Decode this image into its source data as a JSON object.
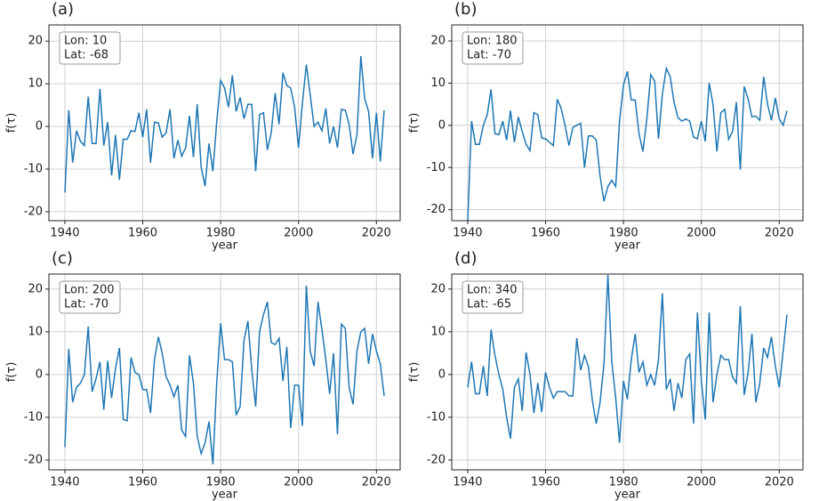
{
  "chart_data": [
    {
      "type": "line",
      "panel_label": "(a)",
      "annotation": [
        "Lon: 10",
        "Lat: -68"
      ],
      "xlabel": "year",
      "ylabel": "f(τ)",
      "x": [
        1940,
        1941,
        1942,
        1943,
        1944,
        1945,
        1946,
        1947,
        1948,
        1949,
        1950,
        1951,
        1952,
        1953,
        1954,
        1955,
        1956,
        1957,
        1958,
        1959,
        1960,
        1961,
        1962,
        1963,
        1964,
        1965,
        1966,
        1967,
        1968,
        1969,
        1970,
        1971,
        1972,
        1973,
        1974,
        1975,
        1976,
        1977,
        1978,
        1979,
        1980,
        1981,
        1982,
        1983,
        1984,
        1985,
        1986,
        1987,
        1988,
        1989,
        1990,
        1991,
        1992,
        1993,
        1994,
        1995,
        1996,
        1997,
        1998,
        1999,
        2000,
        2001,
        2002,
        2003,
        2004,
        2005,
        2006,
        2007,
        2008,
        2009,
        2010,
        2011,
        2012,
        2013,
        2014,
        2015,
        2016,
        2017,
        2018,
        2019,
        2020,
        2021,
        2022
      ],
      "series": [
        {
          "name": "f(τ)",
          "color": "#1f77b4",
          "values": [
            -15.5,
            3.8,
            -8.5,
            -1,
            -3.5,
            -4.5,
            7,
            -4,
            -4,
            8.8,
            -4.5,
            1,
            -11.5,
            -2,
            -12.5,
            -3,
            -3,
            -1,
            -1.2,
            3.2,
            -2.5,
            4,
            -8.5,
            1,
            0.8,
            -2.5,
            -1.5,
            4,
            -7.5,
            -3.2,
            -7,
            -5,
            2.5,
            -7.2,
            5.2,
            -9.5,
            -14,
            -4,
            -10.5,
            1,
            10.8,
            9,
            4.5,
            12,
            3.5,
            6.8,
            1.8,
            5.2,
            5.2,
            -10.5,
            2.8,
            3.2,
            -5.5,
            -1.5,
            7.8,
            0.5,
            12.6,
            9.6,
            9,
            4.5,
            -5,
            5.5,
            14.5,
            7.5,
            0,
            1,
            -1,
            4.2,
            -4,
            0,
            -5,
            4,
            3.8,
            0.5,
            -6.5,
            -2,
            16.5,
            6.5,
            3.5,
            -7.5,
            3.2,
            -8.2,
            3.8
          ]
        }
      ],
      "xlim": [
        1935.9,
        2026.1
      ],
      "xticks": [
        1940,
        1960,
        1980,
        2000,
        2020
      ],
      "ylim": [
        -22.1,
        23.8
      ],
      "yticks": [
        -20,
        -10,
        0,
        10,
        20
      ],
      "grid": true
    },
    {
      "type": "line",
      "panel_label": "(b)",
      "annotation": [
        "Lon: 180",
        "Lat: -70"
      ],
      "xlabel": "year",
      "ylabel": "f(τ)",
      "x": [
        1940,
        1941,
        1942,
        1943,
        1944,
        1945,
        1946,
        1947,
        1948,
        1949,
        1950,
        1951,
        1952,
        1953,
        1954,
        1955,
        1956,
        1957,
        1958,
        1959,
        1960,
        1961,
        1962,
        1963,
        1964,
        1965,
        1966,
        1967,
        1968,
        1969,
        1970,
        1971,
        1972,
        1973,
        1974,
        1975,
        1976,
        1977,
        1978,
        1979,
        1980,
        1981,
        1982,
        1983,
        1984,
        1985,
        1986,
        1987,
        1988,
        1989,
        1990,
        1991,
        1992,
        1993,
        1994,
        1995,
        1996,
        1997,
        1998,
        1999,
        2000,
        2001,
        2002,
        2003,
        2004,
        2005,
        2006,
        2007,
        2008,
        2009,
        2010,
        2011,
        2012,
        2013,
        2014,
        2015,
        2016,
        2017,
        2018,
        2019,
        2020,
        2021,
        2022
      ],
      "series": [
        {
          "name": "f(τ)",
          "color": "#1f77b4",
          "values": [
            -22.6,
            1,
            -4.5,
            -4.5,
            0,
            2.5,
            8.5,
            -2,
            -2.2,
            1,
            -3.5,
            3.5,
            -4,
            2,
            -1.5,
            -4.5,
            -6,
            3,
            2.5,
            -3,
            -3.2,
            -4,
            -4.8,
            6.2,
            4,
            0,
            -4.8,
            -0.5,
            0,
            0.5,
            -10,
            -2.5,
            -2.5,
            -3.5,
            -12,
            -18,
            -14.5,
            -13,
            -14.5,
            1,
            9.5,
            12.8,
            6,
            6,
            -2,
            -6.2,
            1.5,
            12,
            10.5,
            -3.2,
            7.5,
            13.5,
            11.5,
            5.5,
            1.8,
            1,
            1.5,
            1,
            -2.8,
            -3.2,
            1,
            -3.8,
            10,
            5,
            -6.2,
            3,
            3.8,
            -3.3,
            -1.5,
            5.5,
            -10.5,
            9.2,
            6.2,
            2,
            2.2,
            1.2,
            11.5,
            5,
            1.2,
            6.5,
            1.5,
            0,
            3.5
          ]
        }
      ],
      "xlim": [
        1935.9,
        2026.1
      ],
      "xticks": [
        1940,
        1960,
        1980,
        2000,
        2020
      ],
      "ylim": [
        -22.6,
        23.8
      ],
      "yticks": [
        -20,
        -10,
        0,
        10,
        20
      ],
      "grid": true
    },
    {
      "type": "line",
      "panel_label": "(c)",
      "annotation": [
        "Lon: 200",
        "Lat: -70"
      ],
      "xlabel": "year",
      "ylabel": "f(τ)",
      "x": [
        1940,
        1941,
        1942,
        1943,
        1944,
        1945,
        1946,
        1947,
        1948,
        1949,
        1950,
        1951,
        1952,
        1953,
        1954,
        1955,
        1956,
        1957,
        1958,
        1959,
        1960,
        1961,
        1962,
        1963,
        1964,
        1965,
        1966,
        1967,
        1968,
        1969,
        1970,
        1971,
        1972,
        1973,
        1974,
        1975,
        1976,
        1977,
        1978,
        1979,
        1980,
        1981,
        1982,
        1983,
        1984,
        1985,
        1986,
        1987,
        1988,
        1989,
        1990,
        1991,
        1992,
        1993,
        1994,
        1995,
        1996,
        1997,
        1998,
        1999,
        2000,
        2001,
        2002,
        2003,
        2004,
        2005,
        2006,
        2007,
        2008,
        2009,
        2010,
        2011,
        2012,
        2013,
        2014,
        2015,
        2016,
        2017,
        2018,
        2019,
        2020,
        2021,
        2022
      ],
      "series": [
        {
          "name": "f(τ)",
          "color": "#1f77b4",
          "values": [
            -17,
            6,
            -6.5,
            -3,
            -2,
            0,
            11.2,
            -4,
            -1,
            3,
            -8.2,
            3.2,
            -5.5,
            1.5,
            6.2,
            -10.5,
            -10.8,
            4,
            0.5,
            0,
            -3.5,
            -3.5,
            -9,
            3.5,
            8.8,
            5,
            -0.5,
            -2.5,
            -5.2,
            -2.5,
            -13,
            -14.5,
            4.5,
            -2,
            -14.5,
            -18.5,
            -16,
            -11,
            -21,
            -2,
            12,
            3.5,
            3.5,
            3,
            -9.5,
            -7.5,
            8,
            12.5,
            1,
            -7.5,
            10,
            14,
            17,
            7.5,
            7,
            8.5,
            -1.5,
            6.5,
            -12.5,
            -2.5,
            -2.5,
            -12,
            20.8,
            5.5,
            2,
            17,
            10.5,
            3.5,
            -4.5,
            5,
            -14,
            11.8,
            10.8,
            -3,
            -7,
            5.5,
            10,
            10.8,
            2.5,
            9.5,
            5.5,
            2.5,
            -5
          ]
        }
      ],
      "xlim": [
        1935.9,
        2026.1
      ],
      "xticks": [
        1940,
        1960,
        1980,
        2000,
        2020
      ],
      "ylim": [
        -22.3,
        23.5
      ],
      "yticks": [
        -20,
        -10,
        0,
        10,
        20
      ],
      "grid": true
    },
    {
      "type": "line",
      "panel_label": "(d)",
      "annotation": [
        "Lon: 340",
        "Lat: -65"
      ],
      "xlabel": "year",
      "ylabel": "f(τ)",
      "x": [
        1940,
        1941,
        1942,
        1943,
        1944,
        1945,
        1946,
        1947,
        1948,
        1949,
        1950,
        1951,
        1952,
        1953,
        1954,
        1955,
        1956,
        1957,
        1958,
        1959,
        1960,
        1961,
        1962,
        1963,
        1964,
        1965,
        1966,
        1967,
        1968,
        1969,
        1970,
        1971,
        1972,
        1973,
        1974,
        1975,
        1976,
        1977,
        1978,
        1979,
        1980,
        1981,
        1982,
        1983,
        1984,
        1985,
        1986,
        1987,
        1988,
        1989,
        1990,
        1991,
        1992,
        1993,
        1994,
        1995,
        1996,
        1997,
        1998,
        1999,
        2000,
        2001,
        2002,
        2003,
        2004,
        2005,
        2006,
        2007,
        2008,
        2009,
        2010,
        2011,
        2012,
        2013,
        2014,
        2015,
        2016,
        2017,
        2018,
        2019,
        2020,
        2021,
        2022
      ],
      "series": [
        {
          "name": "f(τ)",
          "color": "#1f77b4",
          "values": [
            -3,
            3,
            -4.5,
            -4.5,
            2,
            -5,
            10.5,
            4.5,
            0,
            -3.5,
            -10,
            -15,
            -3,
            -1,
            -8.5,
            5.2,
            0,
            -9,
            -2,
            -8.8,
            0.5,
            -3,
            -5.5,
            -4,
            -4,
            -4,
            -5,
            -5,
            8.5,
            1,
            4.5,
            1.8,
            -6,
            -11.5,
            -6.5,
            2.5,
            23.3,
            3,
            -5.5,
            -16,
            -1.5,
            -5.8,
            3.5,
            9.5,
            0.5,
            3,
            -2.5,
            0,
            -2.5,
            3.5,
            19,
            -3.5,
            -1,
            -8.5,
            -2,
            -5.5,
            3.5,
            4.8,
            -11.5,
            14.5,
            -1.5,
            -10.5,
            14.5,
            -6.5,
            0,
            4.5,
            3.5,
            3.5,
            -0.5,
            -2,
            16,
            -4.8,
            0.5,
            9.5,
            -6.5,
            -2,
            6.2,
            4,
            8.8,
            2,
            -3,
            5.5,
            14
          ]
        }
      ],
      "xlim": [
        1935.9,
        2026.1
      ],
      "xticks": [
        1940,
        1960,
        1980,
        2000,
        2020
      ],
      "ylim": [
        -22.3,
        23.5
      ],
      "yticks": [
        -20,
        -10,
        0,
        10,
        20
      ],
      "grid": true
    }
  ]
}
